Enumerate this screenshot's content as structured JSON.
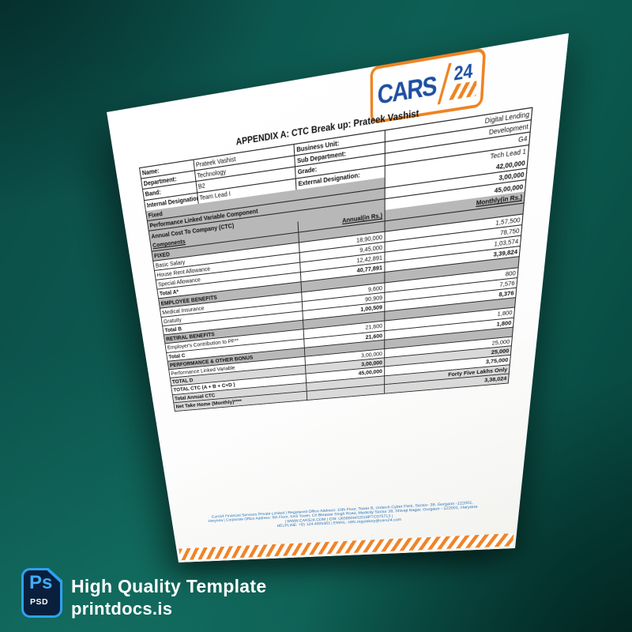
{
  "promo": {
    "ps_label": "Ps",
    "psd_label": "PSD",
    "title": "High Quality Template",
    "site": "printdocs.is"
  },
  "colors": {
    "brand_orange": "#EE8322",
    "brand_blue": "#1E4FA1",
    "footer_blue": "#2E75B6",
    "row_gray": "#B8B8B8",
    "row_light_gray": "#D9D9D9",
    "background_teal": "#0D5E54",
    "psd_blue": "#31A8FF"
  },
  "document": {
    "logo": {
      "brand": "CARS",
      "number": "24"
    },
    "title": "APPENDIX A:  CTC Break up: Prateek Vashist",
    "info_rows": [
      {
        "l1": "Name:",
        "v1": "Prateek Vashist",
        "l2": "Business Unit:",
        "v2": "Digital Lending"
      },
      {
        "l1": "Department:",
        "v1": "Technology",
        "l2": "Sub Department:",
        "v2": "Development"
      },
      {
        "l1": "Band:",
        "v1": "B2",
        "l2": "Grade:",
        "v2": "G4"
      },
      {
        "l1": "Internal Designation:",
        "v1": "Team Lead I",
        "l2": "External Designation:",
        "v2": "Tech Lead 1"
      }
    ],
    "summary_rows": [
      {
        "label": "Fixed",
        "value": "42,00,000"
      },
      {
        "label": "Performance Linked Variable Component",
        "value": "3,00,000"
      },
      {
        "label": "Annual Cost To Company (CTC)",
        "value": "45,00,000"
      }
    ],
    "main_rows": [
      {
        "label": "Components",
        "annual": "Annual(in Rs.)",
        "monthly": "Monthly(in Rs.)",
        "style": "header"
      },
      {
        "label": "FIXED",
        "annual": "",
        "monthly": "",
        "style": "section"
      },
      {
        "label": "Basic Salary",
        "annual": "18,90,000",
        "monthly": "1,57,500",
        "style": "data"
      },
      {
        "label": "House Rent Allowance",
        "annual": "9,45,000",
        "monthly": "78,750",
        "style": "data"
      },
      {
        "label": "Special Allowance",
        "annual": "12,42,891",
        "monthly": "1,03,574",
        "style": "data"
      },
      {
        "label": "Total A*",
        "annual": "40,77,891",
        "monthly": "3,39,824",
        "style": "total"
      },
      {
        "label": "EMPLOYEE BENEFITS",
        "annual": "",
        "monthly": "",
        "style": "section"
      },
      {
        "label": "Medical Insurance",
        "annual": "9,600",
        "monthly": "800",
        "style": "data"
      },
      {
        "label": "Gratuity",
        "annual": "90,909",
        "monthly": "7,576",
        "style": "data"
      },
      {
        "label": "Total B",
        "annual": "1,00,509",
        "monthly": "8,376",
        "style": "total"
      },
      {
        "label": "RETIRAL BENEFITS",
        "annual": "",
        "monthly": "",
        "style": "section"
      },
      {
        "label": "Employer's Contribution to PF**",
        "annual": "21,600",
        "monthly": "1,800",
        "style": "data"
      },
      {
        "label": "Total C",
        "annual": "21,600",
        "monthly": "1,800",
        "style": "total"
      },
      {
        "label": "PERFORMANCE & OTHER BONUS",
        "annual": "",
        "monthly": "",
        "style": "section"
      },
      {
        "label": "Performance Linked Variable",
        "annual": "3,00,000",
        "monthly": "25,000",
        "style": "data"
      },
      {
        "label": "TOTAL D",
        "annual": "3,00,000",
        "monthly": "25,000",
        "style": "graytotal"
      },
      {
        "label": "TOTAL CTC (A + B + C+D )",
        "annual": "45,00,000",
        "monthly": "3,75,000",
        "style": "total"
      },
      {
        "label": "Total Annual CTC",
        "annual": "",
        "monthly": "Forty Five Lakhs Only",
        "style": "lighttotal"
      },
      {
        "label": "Net Take Home (Monthly)****",
        "annual": "",
        "monthly": "3,38,024",
        "style": "lighttotal"
      }
    ],
    "footer_lines": [
      "Cars24 Financial Services Private Limited | Registered Office Address: 10th Floor, Tower B, Unitech Cyber Park, Sector- 39, Gurgaon -122001,",
      "Haryana | Corporate Office Address: 6th Floor, SAS Tower, Ch Bktawar Singh Road, Medicity Sector 38, Shivaji Nagar, Gurgaon - 122001, Haryana",
      "| WWW.CARS24.COM | CIN: U65990HR2018PTC075713 |",
      "HELPLINE: +91 124 4005363 | EMAIL: nbfc.regulatory@cars24.com"
    ]
  }
}
